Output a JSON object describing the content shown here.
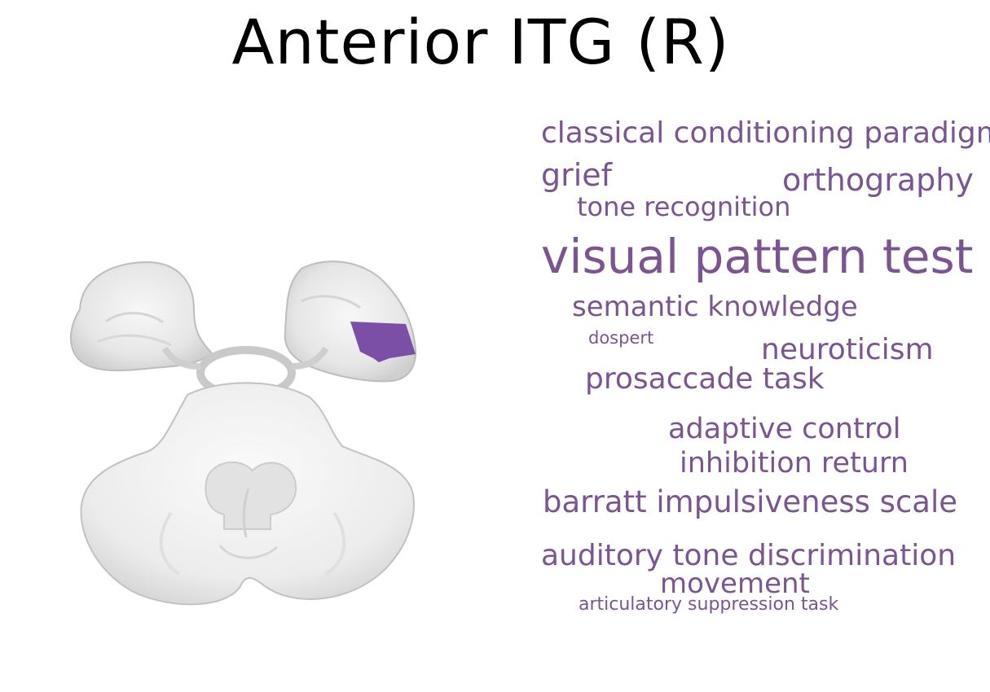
{
  "title": "Anterior ITG (R)",
  "colors": {
    "highlight": "#7c4fa6",
    "term": "#7a5592",
    "brain_fill": "#ececec",
    "brain_edge": "#b9b9b9"
  },
  "brain_icon": "axial-brain-slice",
  "terms": [
    "classical conditioning paradigm",
    "grief",
    "orthography",
    "tone recognition",
    "visual pattern test",
    "semantic knowledge",
    "dospert",
    "neuroticism",
    "prosaccade task",
    "adaptive control",
    "inhibition return",
    "barratt impulsiveness scale",
    "auditory tone discrimination",
    "movement",
    "articulatory suppression task"
  ]
}
